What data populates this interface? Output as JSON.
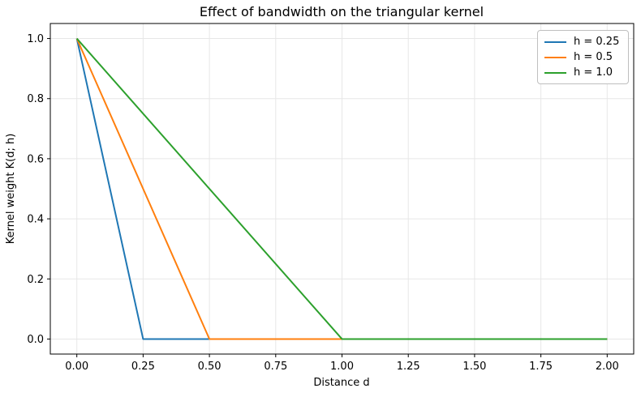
{
  "chart_data": {
    "type": "line",
    "title": "Effect of bandwidth on the triangular kernel",
    "xlabel": "Distance d",
    "ylabel": "Kernel weight K(d; h)",
    "xlim": [
      -0.1,
      2.1
    ],
    "ylim": [
      -0.05,
      1.05
    ],
    "grid": true,
    "legend_position": "upper right",
    "xticks": {
      "values": [
        0,
        0.25,
        0.5,
        0.75,
        1.0,
        1.25,
        1.5,
        1.75,
        2.0
      ],
      "labels": [
        "0.00",
        "0.25",
        "0.50",
        "0.75",
        "1.00",
        "1.25",
        "1.50",
        "1.75",
        "2.00"
      ]
    },
    "yticks": {
      "values": [
        0,
        0.2,
        0.4,
        0.6,
        0.8,
        1.0
      ],
      "labels": [
        "0.0",
        "0.2",
        "0.4",
        "0.6",
        "0.8",
        "1.0"
      ]
    },
    "series": [
      {
        "name": "h = 0.25",
        "color": "#1f77b4",
        "points": [
          [
            0,
            1
          ],
          [
            0.25,
            0
          ],
          [
            2,
            0
          ]
        ]
      },
      {
        "name": "h = 0.5",
        "color": "#ff7f0e",
        "points": [
          [
            0,
            1
          ],
          [
            0.5,
            0
          ],
          [
            2,
            0
          ]
        ]
      },
      {
        "name": "h = 1.0",
        "color": "#2ca02c",
        "points": [
          [
            0,
            1
          ],
          [
            1.0,
            0
          ],
          [
            2,
            0
          ]
        ]
      }
    ],
    "style": {
      "grid_color": "#e7e7e7",
      "spine_color": "#000000",
      "line_width": 2
    }
  }
}
